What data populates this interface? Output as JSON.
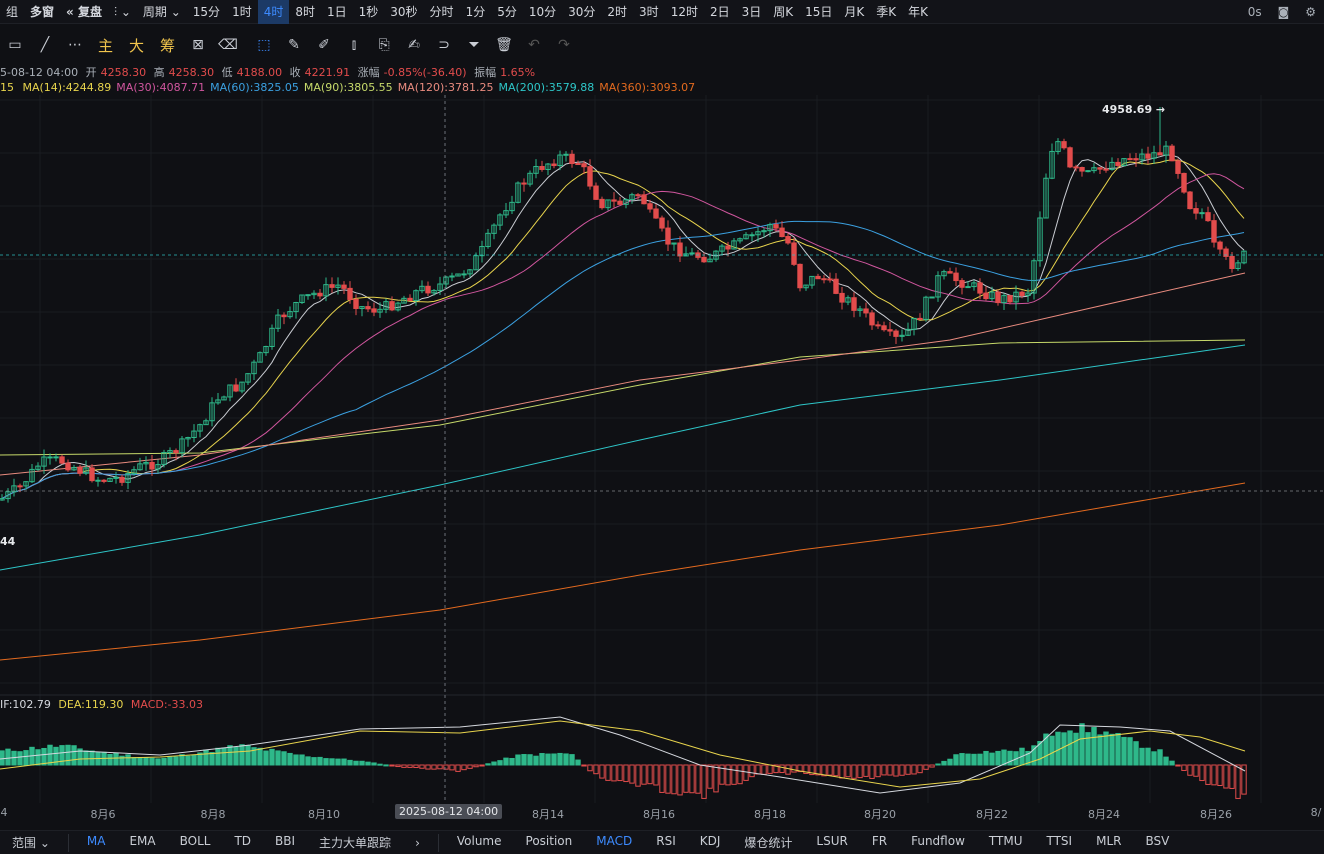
{
  "toolbar": {
    "left_label": "组",
    "multi_window": "多窗",
    "replay": "复盘",
    "period_label": "周期",
    "timeframes": [
      "15分",
      "1时",
      "4时",
      "8时",
      "1日",
      "1秒",
      "30秒",
      "分时",
      "1分",
      "5分",
      "10分",
      "30分",
      "2时",
      "3时",
      "12时",
      "2日",
      "3日",
      "周K",
      "15日",
      "月K",
      "季K",
      "年K"
    ],
    "active_timeframe": "4时",
    "countdown": "0s"
  },
  "drawing": {
    "chip_labels": [
      "主",
      "大",
      "筹"
    ]
  },
  "info": {
    "date": "5-08-12 04:00",
    "open_label": "开",
    "open": "4258.30",
    "high_label": "高",
    "high": "4258.30",
    "low_label": "低",
    "low": "4188.00",
    "close_label": "收",
    "close": "4221.91",
    "change_label": "涨幅",
    "change": "-0.85%(-36.40)",
    "amplitude_label": "振幅",
    "amplitude": "1.65%"
  },
  "ma": {
    "prefix": "15",
    "items": [
      {
        "label": "MA(14):4244.89",
        "color": "#e8d44d"
      },
      {
        "label": "MA(30):4087.71",
        "color": "#d0569e"
      },
      {
        "label": "MA(60):3825.05",
        "color": "#3ba0e0"
      },
      {
        "label": "MA(90):3805.55",
        "color": "#c6d96a"
      },
      {
        "label": "MA(120):3781.25",
        "color": "#e98b7f"
      },
      {
        "label": "MA(200):3579.88",
        "color": "#2ec6c8"
      },
      {
        "label": "MA(360):3093.07",
        "color": "#e36a1f"
      }
    ]
  },
  "macd": {
    "dif": "IF:102.79",
    "dea": "DEA:119.30",
    "macd": "MACD:-33.03"
  },
  "chart_data": {
    "type": "candlestick",
    "annotations": {
      "high_marker": "4958.69",
      "low_marker_partial": "44"
    },
    "date_ticks": [
      "4",
      "8月6",
      "8月8",
      "8月10",
      "8月14",
      "8月16",
      "8月18",
      "8月20",
      "8月22",
      "8月24",
      "8月26",
      "8/"
    ],
    "crosshair_date": "2025-08-12 04:00"
  },
  "indicators": {
    "range_label": "范围",
    "items": [
      "MA",
      "EMA",
      "BOLL",
      "TD",
      "BBI",
      "主力大单跟踪"
    ],
    "active_main": "MA",
    "sub_items": [
      "Volume",
      "Position",
      "MACD",
      "RSI",
      "KDJ",
      "爆仓统计",
      "LSUR",
      "FR",
      "Fundflow",
      "TTMU",
      "TTSI",
      "MLR",
      "BSV"
    ],
    "active_sub": "MACD"
  },
  "colors": {
    "up": "#2eb88a",
    "down": "#e24c4c",
    "background": "#0f1014"
  }
}
